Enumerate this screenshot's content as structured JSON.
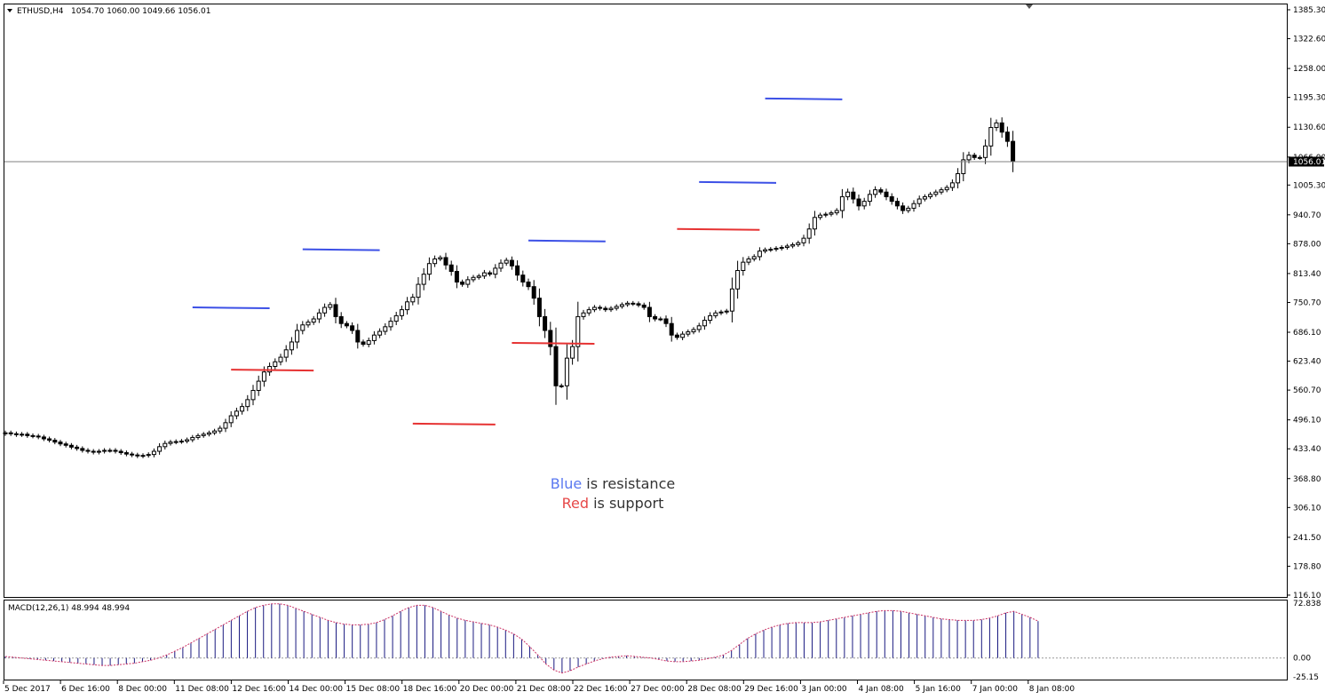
{
  "header": {
    "symbol": "ETHUSD,H4",
    "ohlc": "1054.70 1060.00 1049.66 1056.01"
  },
  "price_tag": "1056.01",
  "macd_label": "MACD(12,26,1) 48.994 48.994",
  "legend": {
    "line1_word": "Blue",
    "line1_rest": " is resistance",
    "line2_word": "Red",
    "line2_rest": " is support"
  },
  "colors": {
    "resistance": "#3c50e6",
    "support": "#e63232",
    "legend_text": "#333333",
    "macd_hist": "#1a1a80",
    "macd_signal": "#cc3366",
    "current_price_line": "#808080"
  },
  "chart_data": {
    "type": "candlestick",
    "symbol": "ETHUSD",
    "timeframe": "H4",
    "ylim": [
      116.01,
      1385.3
    ],
    "y_ticks": [
      1385.3,
      1322.6,
      1258.0,
      1195.3,
      1130.6,
      1066.0,
      1005.3,
      940.7,
      878.0,
      813.4,
      750.7,
      686.1,
      623.4,
      560.7,
      496.1,
      433.4,
      368.8,
      306.1,
      241.5,
      178.8,
      116.1
    ],
    "x_tick_labels": [
      "5 Dec 2017",
      "6 Dec 16:00",
      "8 Dec 00:00",
      "11 Dec 08:00",
      "12 Dec 16:00",
      "14 Dec 00:00",
      "15 Dec 08:00",
      "18 Dec 16:00",
      "20 Dec 00:00",
      "21 Dec 08:00",
      "22 Dec 16:00",
      "27 Dec 00:00",
      "28 Dec 08:00",
      "29 Dec 16:00",
      "3 Jan 00:00",
      "4 Jan 08:00",
      "5 Jan 16:00",
      "7 Jan 00:00",
      "8 Jan 08:00"
    ],
    "current_price": 1056.01,
    "closes": [
      468,
      466,
      464,
      465,
      462,
      461,
      459,
      455,
      452,
      448,
      444,
      441,
      437,
      434,
      430,
      428,
      426,
      428,
      430,
      430,
      428,
      425,
      422,
      420,
      418,
      419,
      421,
      428,
      438,
      445,
      448,
      449,
      450,
      453,
      458,
      462,
      465,
      468,
      472,
      478,
      490,
      505,
      515,
      525,
      540,
      560,
      580,
      600,
      612,
      622,
      632,
      648,
      665,
      690,
      702,
      708,
      715,
      728,
      740,
      746,
      720,
      705,
      700,
      690,
      665,
      660,
      668,
      680,
      688,
      698,
      710,
      722,
      735,
      752,
      762,
      790,
      812,
      835,
      845,
      848,
      832,
      818,
      795,
      790,
      800,
      805,
      808,
      815,
      812,
      825,
      836,
      842,
      830,
      810,
      795,
      785,
      760,
      720,
      690,
      655,
      570,
      570,
      630,
      655,
      720,
      728,
      735,
      740,
      738,
      735,
      738,
      742,
      746,
      749,
      748,
      745,
      740,
      720,
      715,
      715,
      705,
      680,
      675,
      682,
      687,
      692,
      700,
      712,
      722,
      728,
      730,
      732,
      780,
      820,
      838,
      845,
      850,
      862,
      865,
      866,
      868,
      870,
      873,
      876,
      880,
      890,
      910,
      935,
      940,
      942,
      945,
      950,
      980,
      990,
      975,
      960,
      970,
      985,
      995,
      990,
      980,
      970,
      960,
      950,
      955,
      965,
      975,
      980,
      985,
      990,
      995,
      1000,
      1010,
      1030,
      1060,
      1070,
      1065,
      1065,
      1090,
      1130,
      1140,
      1120,
      1100,
      1056
    ],
    "resistance_levels": [
      {
        "from_index": 34,
        "to_index": 48,
        "price": 740
      },
      {
        "from_index": 54,
        "to_index": 68,
        "price": 866
      },
      {
        "from_index": 95,
        "to_index": 109,
        "price": 885
      },
      {
        "from_index": 126,
        "to_index": 140,
        "price": 1012
      },
      {
        "from_index": 138,
        "to_index": 152,
        "price": 1193
      }
    ],
    "support_levels": [
      {
        "from_index": 41,
        "to_index": 56,
        "price": 605
      },
      {
        "from_index": 74,
        "to_index": 89,
        "price": 488
      },
      {
        "from_index": 92,
        "to_index": 107,
        "price": 663
      },
      {
        "from_index": 122,
        "to_index": 137,
        "price": 910
      }
    ],
    "macd": {
      "name": "MACD(12,26,1)",
      "value": 48.994,
      "ylim": [
        -25.15,
        72.838
      ],
      "y_ticks": [
        72.838,
        0.0,
        -25.15
      ],
      "hist": [
        2,
        1,
        0,
        -1,
        -2,
        -3,
        -4,
        -5,
        -6,
        -7,
        -8,
        -9,
        -10,
        -10,
        -9,
        -8,
        -7,
        -5,
        -3,
        0,
        4,
        9,
        14,
        20,
        26,
        32,
        38,
        44,
        50,
        56,
        62,
        67,
        70,
        72,
        72,
        70,
        66,
        62,
        58,
        54,
        50,
        47,
        45,
        44,
        44,
        45,
        47,
        51,
        56,
        62,
        67,
        70,
        70,
        67,
        62,
        57,
        53,
        50,
        48,
        46,
        44,
        41,
        37,
        32,
        25,
        15,
        4,
        -8,
        -16,
        -20,
        -17,
        -12,
        -8,
        -4,
        -1,
        1,
        2,
        3,
        2,
        1,
        0,
        -2,
        -4,
        -5,
        -5,
        -4,
        -3,
        -1,
        1,
        4,
        10,
        18,
        26,
        32,
        37,
        41,
        44,
        46,
        47,
        47,
        47,
        48,
        50,
        52,
        54,
        56,
        58,
        60,
        62,
        63,
        63,
        62,
        60,
        58,
        56,
        54,
        52,
        51,
        50,
        50,
        50,
        51,
        53,
        56,
        60,
        62,
        58,
        54,
        49
      ]
    }
  }
}
